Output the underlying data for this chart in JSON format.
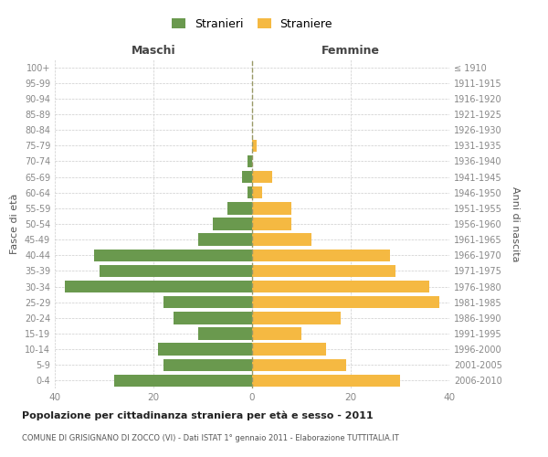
{
  "age_groups": [
    "0-4",
    "5-9",
    "10-14",
    "15-19",
    "20-24",
    "25-29",
    "30-34",
    "35-39",
    "40-44",
    "45-49",
    "50-54",
    "55-59",
    "60-64",
    "65-69",
    "70-74",
    "75-79",
    "80-84",
    "85-89",
    "90-94",
    "95-99",
    "100+"
  ],
  "birth_years": [
    "2006-2010",
    "2001-2005",
    "1996-2000",
    "1991-1995",
    "1986-1990",
    "1981-1985",
    "1976-1980",
    "1971-1975",
    "1966-1970",
    "1961-1965",
    "1956-1960",
    "1951-1955",
    "1946-1950",
    "1941-1945",
    "1936-1940",
    "1931-1935",
    "1926-1930",
    "1921-1925",
    "1916-1920",
    "1911-1915",
    "≤ 1910"
  ],
  "maschi": [
    28,
    18,
    19,
    11,
    16,
    18,
    38,
    31,
    32,
    11,
    8,
    5,
    1,
    2,
    1,
    0,
    0,
    0,
    0,
    0,
    0
  ],
  "femmine": [
    30,
    19,
    15,
    10,
    18,
    38,
    36,
    29,
    28,
    12,
    8,
    8,
    2,
    4,
    0,
    1,
    0,
    0,
    0,
    0,
    0
  ],
  "maschi_color": "#6a994e",
  "femmine_color": "#f5b942",
  "title": "Popolazione per cittadinanza straniera per età e sesso - 2011",
  "subtitle": "COMUNE DI GRISIGNANO DI ZOCCO (VI) - Dati ISTAT 1° gennaio 2011 - Elaborazione TUTTITALIA.IT",
  "xlabel_left": "Maschi",
  "xlabel_right": "Femmine",
  "ylabel_left": "Fasce di età",
  "ylabel_right": "Anni di nascita",
  "legend_maschi": "Stranieri",
  "legend_femmine": "Straniere",
  "xlim": 40,
  "bg_color": "#ffffff",
  "grid_color": "#cccccc",
  "bar_height": 0.78,
  "vline_color": "#999966"
}
